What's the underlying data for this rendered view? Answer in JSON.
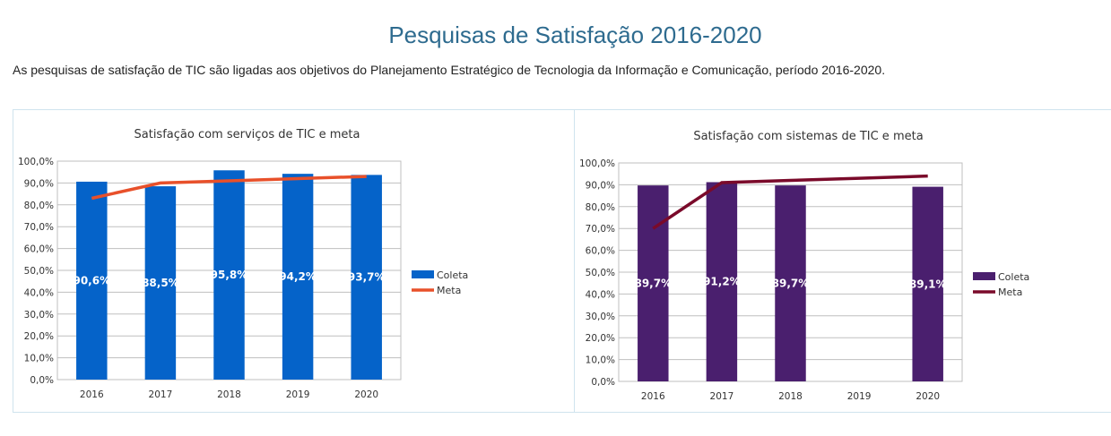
{
  "page": {
    "title": "Pesquisas de Satisfação 2016-2020",
    "intro": "As pesquisas de satisfação de TIC são ligadas aos objetivos do Planejamento Estratégico de Tecnologia da Informação e Comunicação,  período 2016-2020."
  },
  "chart_data": [
    {
      "type": "bar",
      "title": "Satisfação com serviços de TIC e meta",
      "categories": [
        "2016",
        "2017",
        "2018",
        "2019",
        "2020"
      ],
      "ylim": [
        0,
        100
      ],
      "yticks": [
        "0,0%",
        "10,0%",
        "20,0%",
        "30,0%",
        "40,0%",
        "50,0%",
        "60,0%",
        "70,0%",
        "80,0%",
        "90,0%",
        "100,0%"
      ],
      "grid": true,
      "legend": "right",
      "series": [
        {
          "name": "Coleta",
          "kind": "bar",
          "color": "#0563c9",
          "values": [
            90.6,
            88.5,
            95.8,
            94.2,
            93.7
          ],
          "labels": [
            "90,6%",
            "88,5%",
            "95,8%",
            "94,2%",
            "93,7%"
          ]
        },
        {
          "name": "Meta",
          "kind": "line",
          "color": "#e8502a",
          "values": [
            83,
            90,
            91,
            92,
            93
          ]
        }
      ]
    },
    {
      "type": "bar",
      "title": "Satisfação com sistemas de TIC e meta",
      "categories": [
        "2016",
        "2017",
        "2018",
        "2019",
        "2020"
      ],
      "ylim": [
        0,
        100
      ],
      "yticks": [
        "0,0%",
        "10,0%",
        "20,0%",
        "30,0%",
        "40,0%",
        "50,0%",
        "60,0%",
        "70,0%",
        "80,0%",
        "90,0%",
        "100,0%"
      ],
      "grid": true,
      "legend": "right",
      "series": [
        {
          "name": "Coleta",
          "kind": "bar",
          "color": "#4a1f6e",
          "values": [
            89.7,
            91.2,
            89.7,
            null,
            89.1
          ],
          "labels": [
            "89,7%",
            "91,2%",
            "89,7%",
            "",
            "89,1%"
          ]
        },
        {
          "name": "Meta",
          "kind": "line",
          "color": "#7a0a2a",
          "values": [
            70,
            91,
            92,
            93,
            94
          ]
        }
      ]
    }
  ]
}
